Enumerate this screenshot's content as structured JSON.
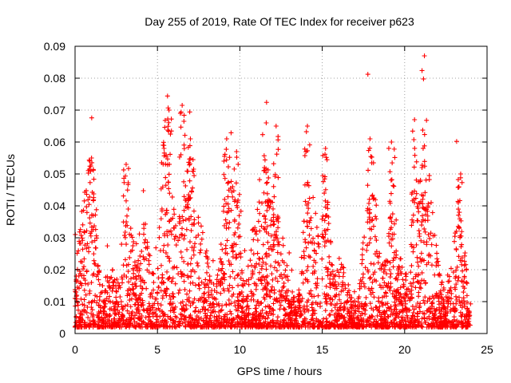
{
  "chart_data": {
    "type": "scatter",
    "title": "Day 255 of 2019, Rate Of TEC Index for receiver p623",
    "xlabel": "GPS time / hours",
    "ylabel": "ROTI / TECUs",
    "xlim": [
      0,
      25
    ],
    "ylim": [
      0,
      0.09
    ],
    "xticks": [
      0,
      5,
      10,
      15,
      20,
      25
    ],
    "xtick_labels": [
      "0",
      "5",
      "10",
      "15",
      "20",
      "25"
    ],
    "yticks": [
      0,
      0.01,
      0.02,
      0.03,
      0.04,
      0.05,
      0.06,
      0.07,
      0.08,
      0.09
    ],
    "ytick_labels": [
      "0",
      "0.01",
      "0.02",
      "0.03",
      "0.04",
      "0.05",
      "0.06",
      "0.07",
      "0.08",
      "0.09"
    ],
    "grid": true,
    "marker": "+",
    "color": "#ff0000",
    "data_x_range": [
      0,
      24
    ],
    "typical_y_range": [
      0.002,
      0.03
    ],
    "peaks": [
      {
        "x": 1.0,
        "y": 0.055
      },
      {
        "x": 3.1,
        "y": 0.053
      },
      {
        "x": 5.4,
        "y": 0.058
      },
      {
        "x": 5.7,
        "y": 0.07
      },
      {
        "x": 6.5,
        "y": 0.0715
      },
      {
        "x": 7.0,
        "y": 0.061
      },
      {
        "x": 9.2,
        "y": 0.061
      },
      {
        "x": 9.8,
        "y": 0.057
      },
      {
        "x": 11.6,
        "y": 0.066
      },
      {
        "x": 12.2,
        "y": 0.065
      },
      {
        "x": 14.1,
        "y": 0.065
      },
      {
        "x": 15.2,
        "y": 0.058
      },
      {
        "x": 17.9,
        "y": 0.061
      },
      {
        "x": 19.2,
        "y": 0.06
      },
      {
        "x": 20.6,
        "y": 0.067
      },
      {
        "x": 21.2,
        "y": 0.087
      },
      {
        "x": 23.4,
        "y": 0.05
      }
    ]
  }
}
